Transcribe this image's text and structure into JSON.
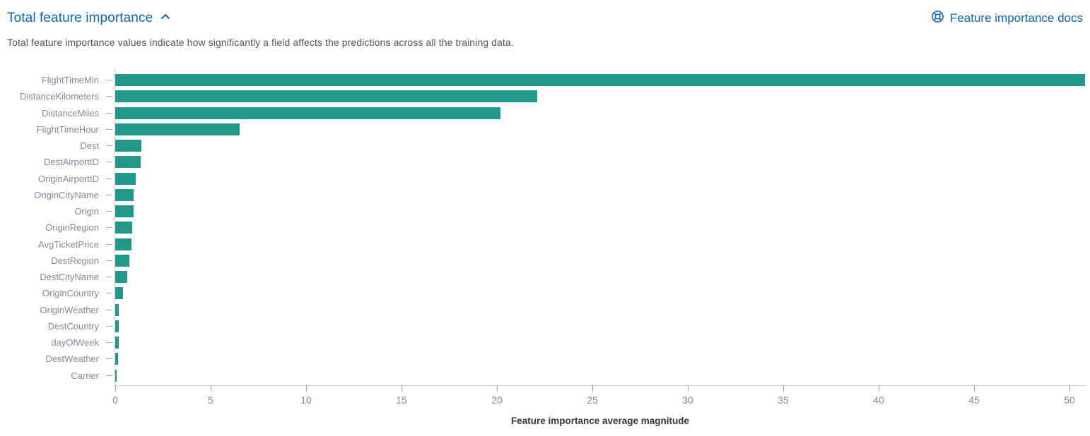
{
  "header": {
    "title": "Total feature importance",
    "docs_link_label": "Feature importance docs",
    "description": "Total feature importance values indicate how significantly a field affects the predictions across all the training data."
  },
  "colors": {
    "link_blue": "#0b63c5",
    "bar_teal": "#20998a",
    "axis_label_gray": "#80899e",
    "axis_line_gray": "#cbd1dd",
    "description_text": "#4e535e",
    "axis_title_text": "#33363f"
  },
  "chart_data": {
    "type": "bar",
    "orientation": "horizontal",
    "title": "",
    "xlabel": "Feature importance average magnitude",
    "ylabel": "",
    "xlim": [
      0,
      50.8
    ],
    "xticks": [
      0,
      5,
      10,
      15,
      20,
      25,
      30,
      35,
      40,
      45,
      50
    ],
    "grid": false,
    "legend": false,
    "categories": [
      "FlightTimeMin",
      "DistanceKilometers",
      "DistanceMiles",
      "FlightTimeHour",
      "Dest",
      "DestAirportID",
      "OriginAirportID",
      "OriginCityName",
      "Origin",
      "OriginRegion",
      "AvgTicketPrice",
      "DestRegion",
      "DestCityName",
      "OriginCountry",
      "OriginWeather",
      "DestCountry",
      "dayOfWeek",
      "DestWeather",
      "Carrier"
    ],
    "values": [
      50.8,
      22.1,
      20.2,
      6.5,
      1.37,
      1.32,
      1.08,
      0.97,
      0.95,
      0.88,
      0.85,
      0.73,
      0.62,
      0.41,
      0.2,
      0.18,
      0.17,
      0.15,
      0.06
    ]
  }
}
